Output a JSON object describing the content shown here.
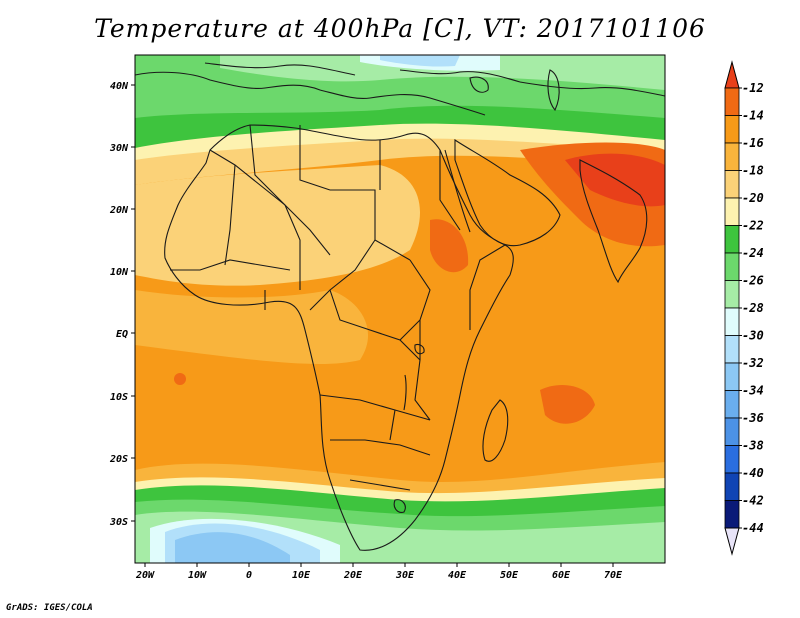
{
  "title": "Temperature at 400hPa [C], VT: 2017101106",
  "credit": "GrADS: IGES/COLA",
  "map": {
    "lon_labels": [
      "20W",
      "10W",
      "0",
      "10E",
      "20E",
      "30E",
      "40E",
      "50E",
      "60E",
      "70E"
    ],
    "lat_labels": [
      "40N",
      "30N",
      "20N",
      "10N",
      "EQ",
      "10S",
      "20S",
      "30S"
    ]
  },
  "colorbar": {
    "labels": [
      "-12",
      "-14",
      "-16",
      "-18",
      "-20",
      "-22",
      "-24",
      "-26",
      "-28",
      "-30",
      "-32",
      "-34",
      "-36",
      "-38",
      "-40",
      "-42",
      "-44"
    ],
    "colors": [
      "#e8401a",
      "#f06a14",
      "#f79a18",
      "#f9b43c",
      "#fbd278",
      "#fdf2b0",
      "#3ec43e",
      "#6cd86c",
      "#a6eca6",
      "#e0fcfc",
      "#b2e0fa",
      "#8cc8f4",
      "#6aaeee",
      "#4c92e6",
      "#2a6ee0",
      "#1044b4",
      "#0a1a78"
    ]
  }
}
